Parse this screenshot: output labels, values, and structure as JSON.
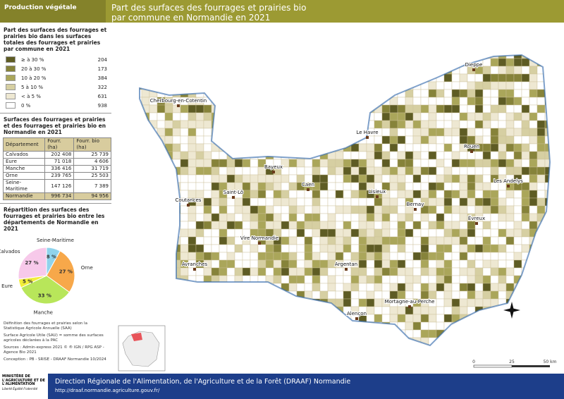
{
  "header": {
    "section": "Production végétale",
    "title_line1": "Part des surfaces des fourrages et prairies bio",
    "title_line2": "par commune en Normandie en 2021"
  },
  "legend": {
    "title": "Part des surfaces des fourrages et prairies bio dans les surfaces totales des fourrages et prairies par commune en 2021",
    "classes": [
      {
        "label": "≥ à 30 %",
        "count": 204,
        "color": "#5e5c24"
      },
      {
        "label": "20 à 30 %",
        "count": 173,
        "color": "#86833a"
      },
      {
        "label": "10 à 20 %",
        "count": 384,
        "color": "#aaa65a"
      },
      {
        "label": "5 à 10 %",
        "count": 322,
        "color": "#d6cfa2"
      },
      {
        "label": "< à 5 %",
        "count": 631,
        "color": "#eee8d2"
      },
      {
        "label": "0 %",
        "count": 938,
        "color": "#ffffff"
      }
    ]
  },
  "table": {
    "title": "Surfaces des fourrages et prairies et des fourrages et prairies bio en Normandie en 2021",
    "columns": [
      "Département",
      "Fourr. (ha)",
      "Fourr. bio (ha)"
    ],
    "rows": [
      [
        "Calvados",
        "202 408",
        "25 739"
      ],
      [
        "Eure",
        "71 018",
        "4 606"
      ],
      [
        "Manche",
        "336 416",
        "31 719"
      ],
      [
        "Orne",
        "239 765",
        "25 503"
      ],
      [
        "Seine-Maritime",
        "147 126",
        "7 389"
      ]
    ],
    "total": [
      "Normandie",
      "996 734",
      "94 956"
    ]
  },
  "chart_data": {
    "type": "pie",
    "title": "Répartition des surfaces des fourrages et prairies bio entre les départements de Normandie en 2021",
    "categories": [
      "Seine-Maritime",
      "Orne",
      "Manche",
      "Eure",
      "Calvados"
    ],
    "values": [
      8,
      27,
      33,
      5,
      27
    ],
    "value_labels": [
      "8 %",
      "27 %",
      "33 %",
      "5 %",
      "27 %"
    ],
    "colors": [
      "#8fd3ec",
      "#f7a84a",
      "#b8e65a",
      "#f2ee3a",
      "#f7c9ea"
    ]
  },
  "notes": [
    "Définition des fourrages et prairies selon la Statistique Agricole Annuelle (SAA)",
    "Surface Agricole Utile (SAU) = somme des surfaces agricoles déclarées à la PAC"
  ],
  "sources": [
    "Sources        : Admin-express 2021 © ® IGN / RPG ASP - Agence Bio 2021",
    "Conception : PB - SRISE - DRAAF Normandie 10/2024"
  ],
  "map": {
    "cities": [
      "Dieppe",
      "Cherbourg-en-Cotentin",
      "Le Havre",
      "Rouen",
      "Bayeux",
      "Caen",
      "Lisieux",
      "Saint-Lô",
      "Les Andelys",
      "Coutances",
      "Bernay",
      "Évreux",
      "Vire Normandie",
      "Avranches",
      "Argentan",
      "Mortagne-au-Perche",
      "Alençon"
    ],
    "scale": [
      "0",
      "25",
      "50 km"
    ]
  },
  "footer": {
    "ministry": "MINISTÈRE DE L'AGRICULTURE ET DE L'ALIMENTATION",
    "motto": "Liberté Égalité Fraternité",
    "org": "Direction Régionale de l'Alimentation, de l'Agriculture et de la Forêt (DRAAF) Normandie",
    "url": "http://draaf.normandie.agriculture.gouv.fr/"
  }
}
